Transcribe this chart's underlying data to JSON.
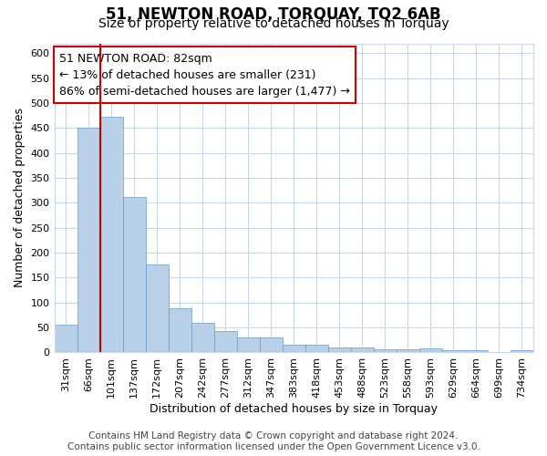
{
  "title": "51, NEWTON ROAD, TORQUAY, TQ2 6AB",
  "subtitle": "Size of property relative to detached houses in Torquay",
  "xlabel": "Distribution of detached houses by size in Torquay",
  "ylabel": "Number of detached properties",
  "categories": [
    "31sqm",
    "66sqm",
    "101sqm",
    "137sqm",
    "172sqm",
    "207sqm",
    "242sqm",
    "277sqm",
    "312sqm",
    "347sqm",
    "383sqm",
    "418sqm",
    "453sqm",
    "488sqm",
    "523sqm",
    "558sqm",
    "593sqm",
    "629sqm",
    "664sqm",
    "699sqm",
    "734sqm"
  ],
  "values": [
    55,
    450,
    472,
    311,
    176,
    88,
    59,
    43,
    31,
    31,
    15,
    15,
    10,
    10,
    6,
    6,
    9,
    4,
    4,
    0,
    5
  ],
  "bar_color": "#b8d0e8",
  "bar_edge_color": "#6699cc",
  "vline_x_index": 1,
  "vline_color": "#cc0000",
  "annotation_text": "51 NEWTON ROAD: 82sqm\n← 13% of detached houses are smaller (231)\n86% of semi-detached houses are larger (1,477) →",
  "annotation_box_facecolor": "#ffffff",
  "annotation_box_edgecolor": "#cc0000",
  "ylim": [
    0,
    620
  ],
  "yticks": [
    0,
    50,
    100,
    150,
    200,
    250,
    300,
    350,
    400,
    450,
    500,
    550,
    600
  ],
  "footer_line1": "Contains HM Land Registry data © Crown copyright and database right 2024.",
  "footer_line2": "Contains public sector information licensed under the Open Government Licence v3.0.",
  "bg_color": "#ffffff",
  "plot_bg_color": "#ffffff",
  "grid_color": "#c8d8e8",
  "title_fontsize": 12,
  "subtitle_fontsize": 10,
  "axis_label_fontsize": 9,
  "tick_fontsize": 8,
  "annotation_fontsize": 9,
  "footer_fontsize": 7.5
}
